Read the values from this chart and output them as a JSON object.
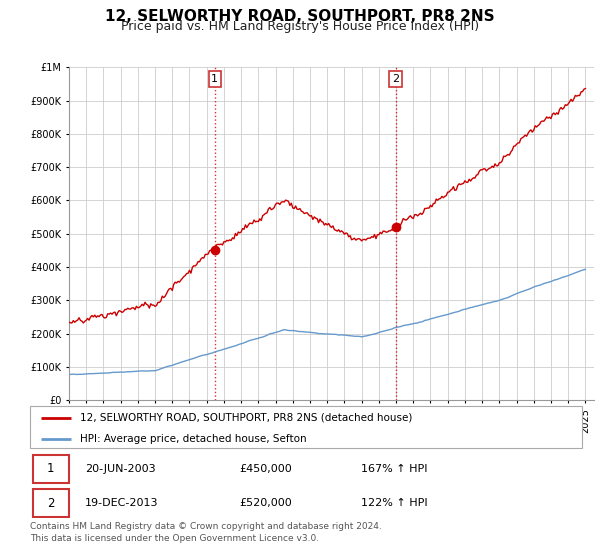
{
  "title": "12, SELWORTHY ROAD, SOUTHPORT, PR8 2NS",
  "subtitle": "Price paid vs. HM Land Registry's House Price Index (HPI)",
  "title_fontsize": 11,
  "subtitle_fontsize": 9,
  "red_label": "12, SELWORTHY ROAD, SOUTHPORT, PR8 2NS (detached house)",
  "blue_label": "HPI: Average price, detached house, Sefton",
  "transaction1_date": "20-JUN-2003",
  "transaction1_price": "£450,000",
  "transaction1_hpi": "167% ↑ HPI",
  "transaction1_year": 2003.47,
  "transaction1_value": 450000,
  "transaction2_date": "19-DEC-2013",
  "transaction2_price": "£520,000",
  "transaction2_hpi": "122% ↑ HPI",
  "transaction2_year": 2013.97,
  "transaction2_value": 520000,
  "footnote": "Contains HM Land Registry data © Crown copyright and database right 2024.\nThis data is licensed under the Open Government Licence v3.0.",
  "ylim": [
    0,
    1000000
  ],
  "background_color": "#ffffff",
  "plot_bg_color": "#ffffff",
  "grid_color": "#cccccc",
  "red_color": "#cc0000",
  "blue_color": "#6699cc"
}
